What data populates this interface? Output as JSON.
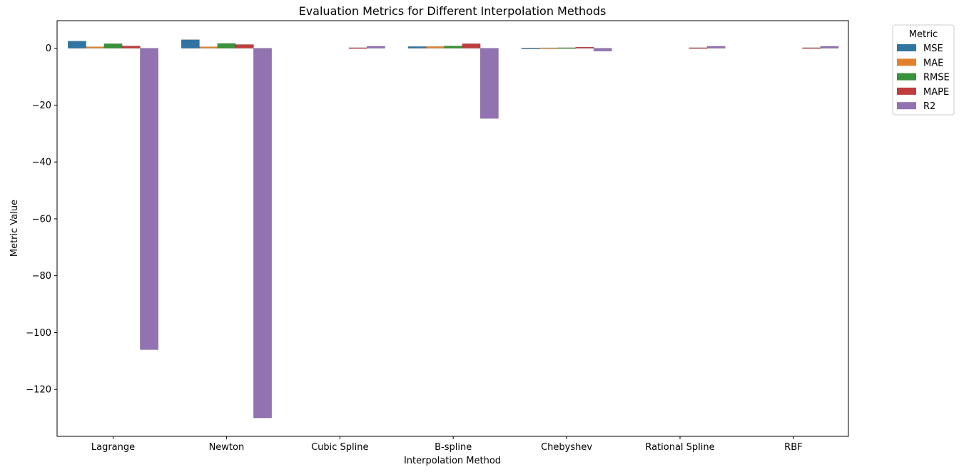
{
  "chart_data": {
    "type": "bar",
    "title": "Evaluation Metrics for Different Interpolation Methods",
    "xlabel": "Interpolation Method",
    "ylabel": "Metric Value",
    "categories": [
      "Lagrange",
      "Newton",
      "Cubic Spline",
      "B-spline",
      "Chebyshev",
      "Rational Spline",
      "RBF"
    ],
    "series": [
      {
        "name": "MSE",
        "color": "#3274a1",
        "values": [
          2.5,
          3.0,
          0.0,
          0.6,
          0.05,
          0.0,
          0.0
        ]
      },
      {
        "name": "MAE",
        "color": "#e1812c",
        "values": [
          0.5,
          0.5,
          0.0,
          0.6,
          0.15,
          0.0,
          0.0
        ]
      },
      {
        "name": "RMSE",
        "color": "#3a923a",
        "values": [
          1.6,
          1.7,
          0.0,
          0.8,
          0.2,
          0.0,
          0.0
        ]
      },
      {
        "name": "MAPE",
        "color": "#c03d3e",
        "values": [
          0.8,
          1.3,
          0.2,
          1.6,
          0.4,
          0.2,
          0.2
        ]
      },
      {
        "name": "R2",
        "color": "#9372b2",
        "values": [
          -106,
          -130,
          0.7,
          -24.7,
          -1.0,
          0.7,
          0.7
        ]
      }
    ],
    "ylim": [
      -136.5,
      9.7
    ],
    "yticks": [
      0,
      -20,
      -40,
      -60,
      -80,
      -100,
      -120
    ],
    "ytick_labels": [
      "0",
      "−20",
      "−40",
      "−60",
      "−80",
      "−100",
      "−120"
    ],
    "legend": {
      "title": "Metric",
      "position": "upper-right-outside"
    },
    "grid": false
  }
}
